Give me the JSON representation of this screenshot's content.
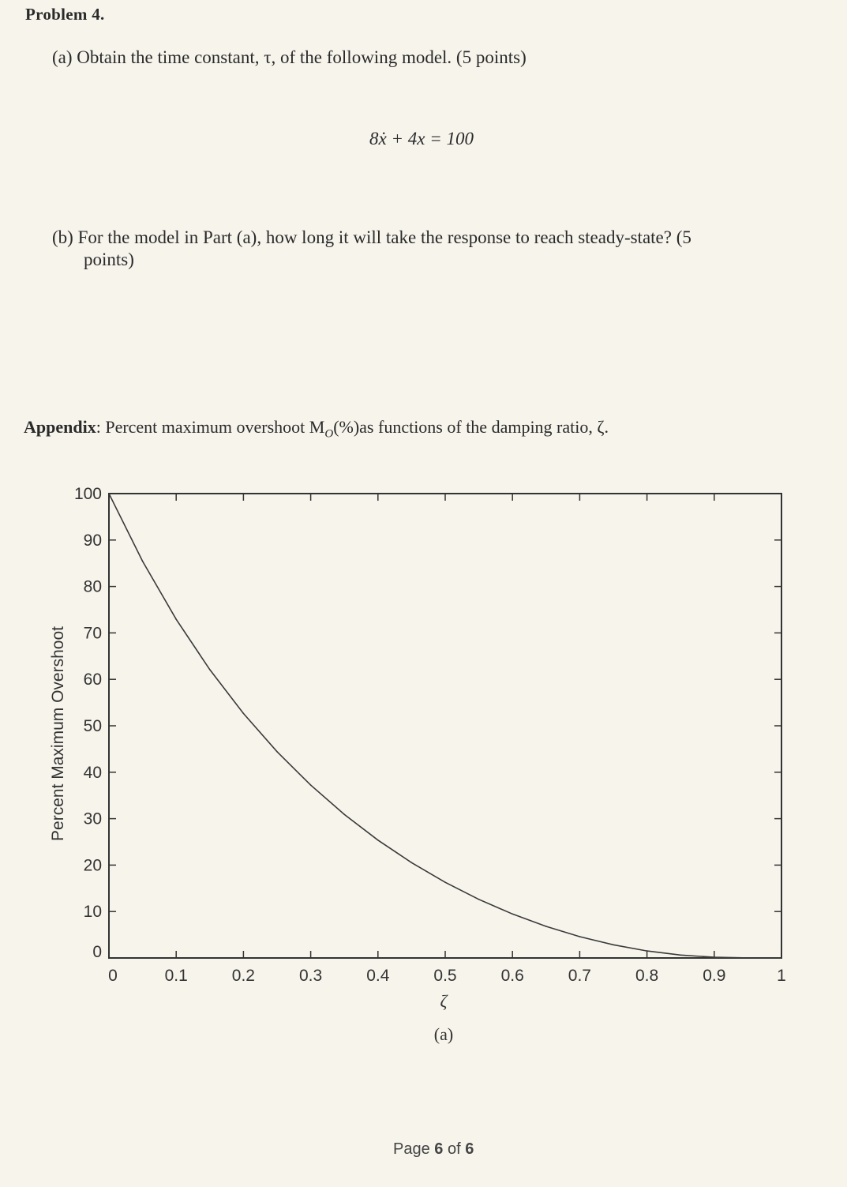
{
  "problem": {
    "title": "Problem 4.",
    "part_a": "(a) Obtain the time constant, τ, of the following model. (5 points)",
    "equation": "8ẋ + 4x = 100",
    "part_b_line1": "(b) For the model in Part (a), how long it will take the response to reach steady-state? (5",
    "part_b_line2": "points)"
  },
  "appendix": {
    "label": "Appendix",
    "text": ": Percent maximum overshoot M",
    "subscript": "O",
    "text2": "(%)as functions of the damping ratio, ζ."
  },
  "footer": {
    "page_prefix": "Page ",
    "page_num": "6",
    "page_mid": " of ",
    "page_total": "6"
  },
  "chart_data": {
    "type": "line",
    "ylabel": "Percent Maximum Overshoot",
    "xlabel": "ζ",
    "sublabel": "(a)",
    "xlim": [
      0,
      1
    ],
    "ylim": [
      0,
      100
    ],
    "xticks": [
      "0",
      "0.1",
      "0.2",
      "0.3",
      "0.4",
      "0.5",
      "0.6",
      "0.7",
      "0.8",
      "0.9",
      "1"
    ],
    "yticks": [
      "0",
      "10",
      "20",
      "30",
      "40",
      "50",
      "60",
      "70",
      "80",
      "90",
      "100"
    ],
    "grid": false,
    "series": [
      {
        "x": [
          0,
          0.05,
          0.1,
          0.15,
          0.2,
          0.25,
          0.3,
          0.35,
          0.4,
          0.45,
          0.5,
          0.55,
          0.6,
          0.65,
          0.7,
          0.75,
          0.8,
          0.85,
          0.9,
          0.95,
          1.0
        ],
        "y": [
          100,
          85.45,
          72.92,
          62.09,
          52.66,
          44.43,
          37.23,
          30.92,
          25.38,
          20.53,
          16.3,
          12.62,
          9.48,
          6.81,
          4.6,
          2.84,
          1.52,
          0.63,
          0.15,
          0.01,
          0
        ]
      }
    ]
  }
}
